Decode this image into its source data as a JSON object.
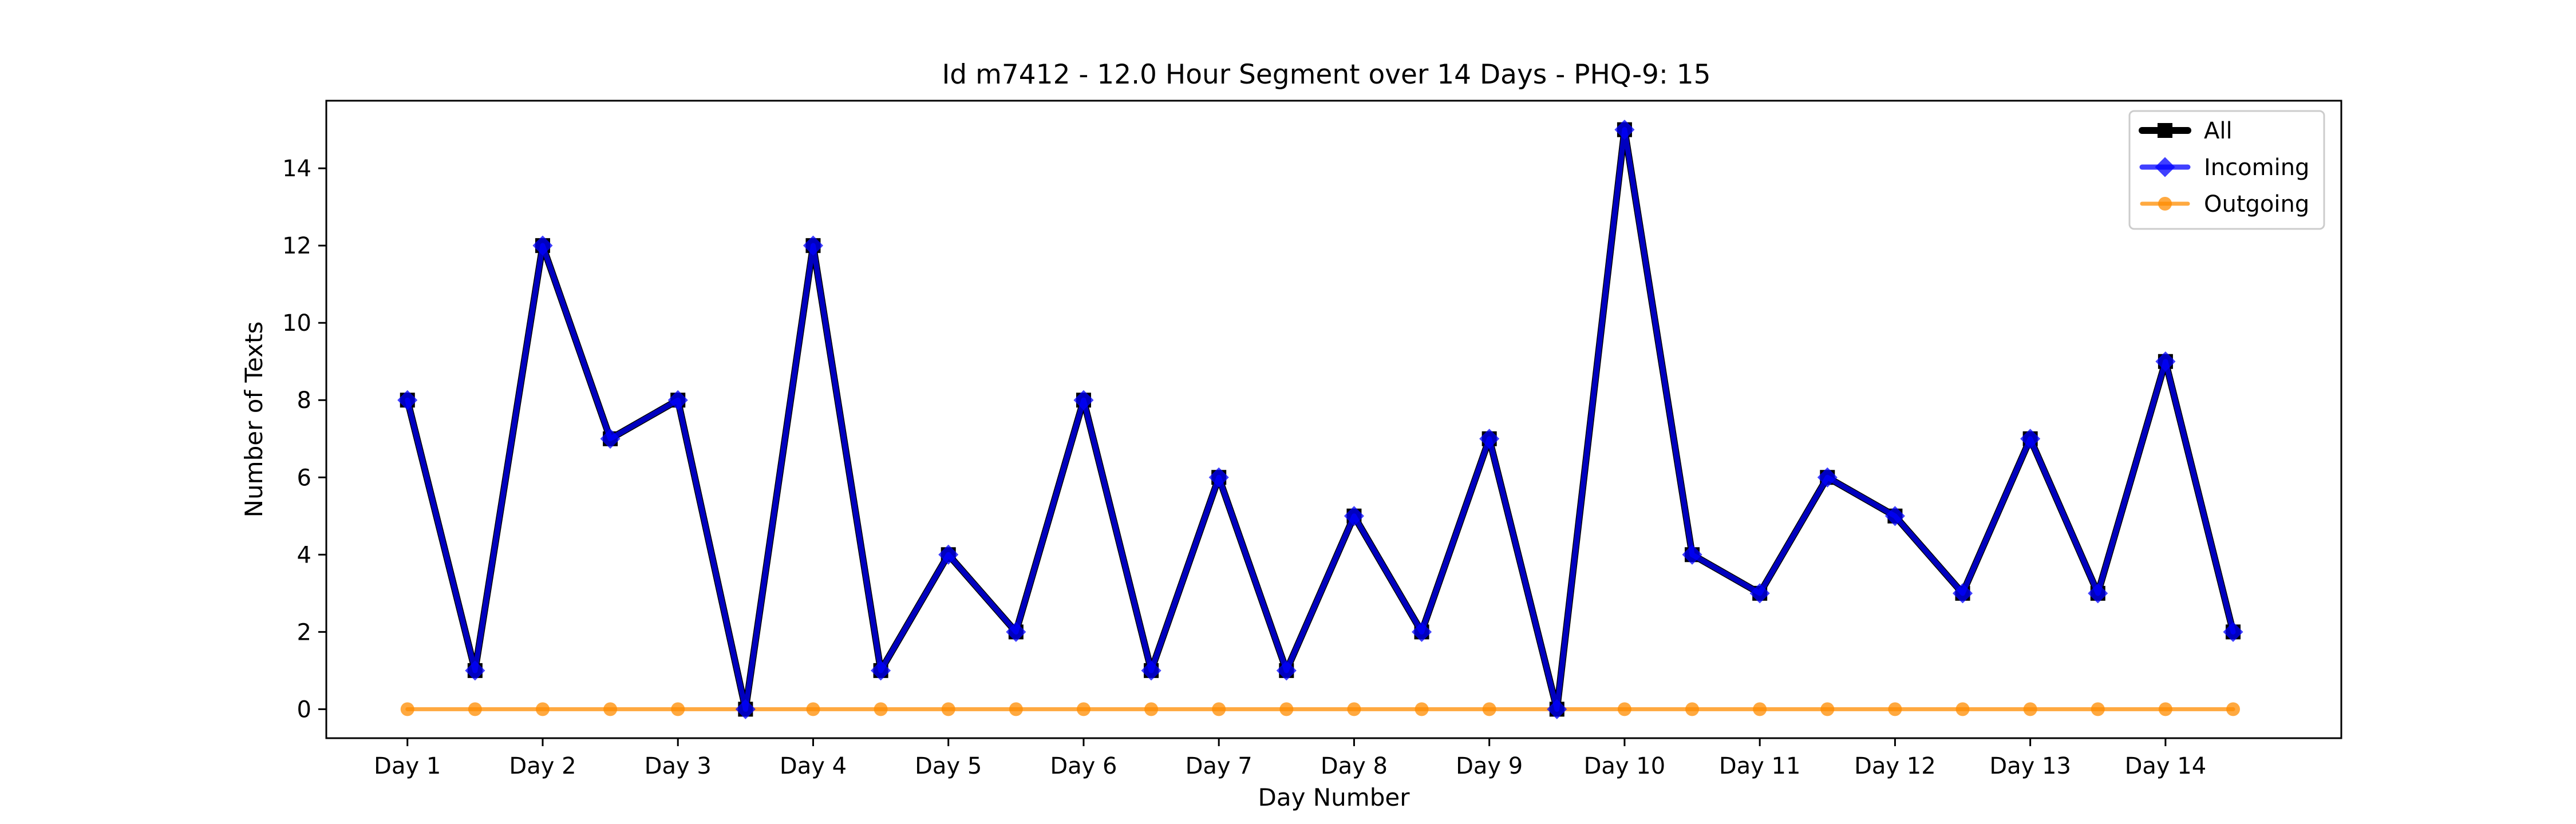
{
  "chart_data": {
    "type": "line",
    "title": "Id m7412 - 12.0 Hour Segment over 14 Days - PHQ-9: 15",
    "xlabel": "Day Number",
    "ylabel": "Number of Texts",
    "categories": [
      "Day 1",
      "Day 2",
      "Day 3",
      "Day 4",
      "Day 5",
      "Day 6",
      "Day 7",
      "Day 8",
      "Day 9",
      "Day 10",
      "Day 11",
      "Day 12",
      "Day 13",
      "Day 14"
    ],
    "x": [
      1,
      1.5,
      2,
      2.5,
      3,
      3.5,
      4,
      4.5,
      5,
      5.5,
      6,
      6.5,
      7,
      7.5,
      8,
      8.5,
      9,
      9.5,
      10,
      10.5,
      11,
      11.5,
      12,
      12.5,
      13,
      13.5,
      14,
      14.5
    ],
    "xlim": [
      0.4,
      15.3
    ],
    "ylim": [
      -0.75,
      15.75
    ],
    "yticks": [
      0,
      2,
      4,
      6,
      8,
      10,
      12,
      14
    ],
    "grid": false,
    "legend_position": "top-right",
    "series": [
      {
        "name": "All",
        "color": "#000000",
        "marker": "square",
        "values": [
          8,
          1,
          12,
          7,
          8,
          0,
          12,
          1,
          4,
          2,
          8,
          1,
          6,
          1,
          5,
          2,
          7,
          0,
          15,
          4,
          3,
          6,
          5,
          3,
          7,
          3,
          9,
          2
        ]
      },
      {
        "name": "Incoming",
        "color": "#0000ff",
        "marker": "diamond",
        "values": [
          8,
          1,
          12,
          7,
          8,
          0,
          12,
          1,
          4,
          2,
          8,
          1,
          6,
          1,
          5,
          2,
          7,
          0,
          15,
          4,
          3,
          6,
          5,
          3,
          7,
          3,
          9,
          2
        ]
      },
      {
        "name": "Outgoing",
        "color": "#ff8c00",
        "marker": "circle",
        "values": [
          0,
          0,
          0,
          0,
          0,
          0,
          0,
          0,
          0,
          0,
          0,
          0,
          0,
          0,
          0,
          0,
          0,
          0,
          0,
          0,
          0,
          0,
          0,
          0,
          0,
          0,
          0,
          0
        ]
      }
    ]
  }
}
